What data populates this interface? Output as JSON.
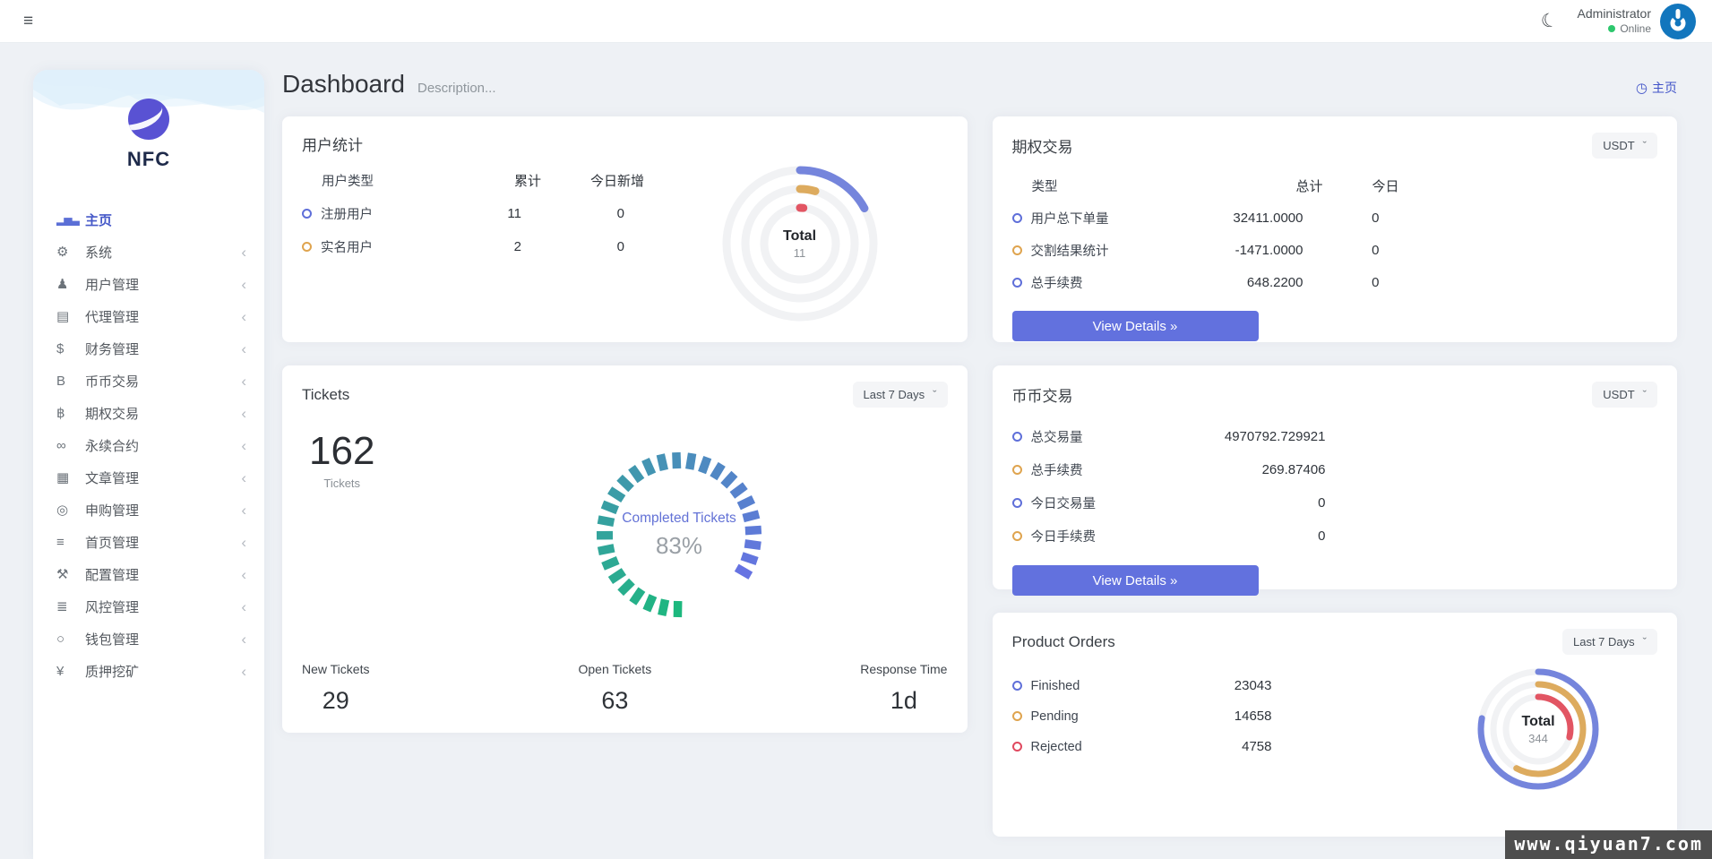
{
  "ui": {
    "hamburger": "≡",
    "moon": "☾",
    "chevron": "‹",
    "select_caret": "ˇ",
    "breadcrumb_icon": "◷"
  },
  "topbar": {
    "user_name": "Administrator",
    "status": "Online"
  },
  "brand": {
    "name": "NFC"
  },
  "page": {
    "title": "Dashboard",
    "subtitle": "Description...",
    "breadcrumb": "主页"
  },
  "sidebar": {
    "items": [
      {
        "label": "主页",
        "glyph": "▂▅▃"
      },
      {
        "label": "系统",
        "glyph": "⚙"
      },
      {
        "label": "用户管理",
        "glyph": "♟"
      },
      {
        "label": "代理管理",
        "glyph": "▤"
      },
      {
        "label": "财务管理",
        "glyph": "$"
      },
      {
        "label": "币币交易",
        "glyph": "B"
      },
      {
        "label": "期权交易",
        "glyph": "฿"
      },
      {
        "label": "永续合约",
        "glyph": "∞"
      },
      {
        "label": "文章管理",
        "glyph": "▦"
      },
      {
        "label": "申购管理",
        "glyph": "◎"
      },
      {
        "label": "首页管理",
        "glyph": "≡"
      },
      {
        "label": "配置管理",
        "glyph": "⚒"
      },
      {
        "label": "风控管理",
        "glyph": "≣"
      },
      {
        "label": "钱包管理",
        "glyph": "○"
      },
      {
        "label": "质押挖矿",
        "glyph": "¥"
      }
    ]
  },
  "cards": {
    "user_stats": {
      "title": "用户统计",
      "headers": [
        "用户类型",
        "累计",
        "今日新增"
      ],
      "rows": [
        {
          "label": "注册用户",
          "marker": "#5f6fd9",
          "total": "11",
          "today": "0"
        },
        {
          "label": "实名用户",
          "marker": "#dfa44f",
          "total": "2",
          "today": "0"
        }
      ],
      "donut": {
        "center_label": "Total",
        "center_value": "11",
        "rings": [
          {
            "color": "#7585dc",
            "pct": 0.17
          },
          {
            "color": "#ddab5e",
            "pct": 0.045
          },
          {
            "color": "#e25563",
            "pct": 0.015
          }
        ]
      }
    },
    "options_trading": {
      "title": "期权交易",
      "currency": "USDT",
      "headers": [
        "类型",
        "总计",
        "今日"
      ],
      "rows": [
        {
          "label": "用户总下单量",
          "marker": "#5f6fd9",
          "total": "32411.0000",
          "today": "0"
        },
        {
          "label": "交割结果统计",
          "marker": "#dfa44f",
          "total": "-1471.0000",
          "today": "0"
        },
        {
          "label": "总手续费",
          "marker": "#5f6fd9",
          "total": "648.2200",
          "today": "0"
        }
      ],
      "button": "View Details »"
    },
    "tickets": {
      "title": "Tickets",
      "period": "Last 7 Days",
      "count": "162",
      "count_label": "Tickets",
      "gauge": {
        "percent": 83,
        "label": "Completed Tickets",
        "value_text": "83%",
        "color_start": "#1db87e",
        "color_end": "#6673e2"
      },
      "stats": [
        {
          "label": "New Tickets",
          "value": "29"
        },
        {
          "label": "Open Tickets",
          "value": "63"
        },
        {
          "label": "Response Time",
          "value": "1d"
        }
      ]
    },
    "coin_trading": {
      "title": "币币交易",
      "currency": "USDT",
      "rows": [
        {
          "label": "总交易量",
          "marker": "#5f6fd9",
          "value": "4970792.729921"
        },
        {
          "label": "总手续费",
          "marker": "#dfa44f",
          "value": "269.87406"
        },
        {
          "label": "今日交易量",
          "marker": "#5f6fd9",
          "value": "0"
        },
        {
          "label": "今日手续费",
          "marker": "#dfa44f",
          "value": "0"
        }
      ],
      "button": "View Details »"
    },
    "product_orders": {
      "title": "Product Orders",
      "period": "Last 7 Days",
      "rows": [
        {
          "label": "Finished",
          "marker": "#5f6fd9",
          "value": "23043"
        },
        {
          "label": "Pending",
          "marker": "#dfa44f",
          "value": "14658"
        },
        {
          "label": "Rejected",
          "marker": "#e0495f",
          "value": "4758"
        }
      ],
      "donut": {
        "center_label": "Total",
        "center_value": "344",
        "rings": [
          {
            "color": "#7585dc",
            "pct": 0.78
          },
          {
            "color": "#ddab5e",
            "pct": 0.58
          },
          {
            "color": "#e25563",
            "pct": 0.29
          }
        ]
      }
    }
  },
  "watermark": "www.qiyuan7.com",
  "colors": {
    "accent": "#6271de",
    "active": "#4659c8",
    "online": "#2dc76d",
    "background": "#eef1f5"
  }
}
